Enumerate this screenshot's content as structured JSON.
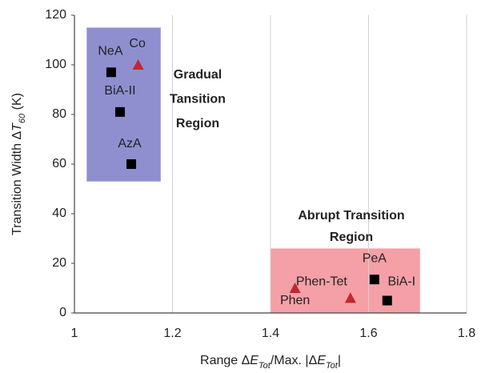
{
  "chart_data": {
    "type": "scatter",
    "x_label": [
      "Range Δ",
      "E",
      "Tot",
      "/Max. |Δ",
      "E",
      "Tot",
      "|"
    ],
    "y_label": [
      "Transition Width Δ",
      "T",
      "60",
      " (K)"
    ],
    "xlim": [
      1,
      1.8
    ],
    "xticks": [
      1,
      1.2,
      1.4,
      1.6,
      1.8
    ],
    "ylim": [
      0,
      120
    ],
    "yticks": [
      0,
      20,
      40,
      60,
      80,
      100,
      120
    ],
    "grid": "x",
    "regions": [
      {
        "text": [
          "Gradual",
          "Tansition",
          "Region"
        ],
        "x": [
          1.025,
          1.176
        ],
        "y": [
          53,
          115
        ],
        "color": "#8f8fd0"
      },
      {
        "text": [
          "Abrupt Transition",
          "Region"
        ],
        "x": [
          1.4,
          1.705
        ],
        "y": [
          0,
          26
        ],
        "color": "#f4a0a6"
      }
    ],
    "series": [
      {
        "marker": "square",
        "color": "#000000",
        "labels": [
          "NeA",
          "BiA-II",
          "AzA",
          "PeA",
          "BiA-I"
        ],
        "x": [
          1.075,
          1.093,
          1.116,
          1.612,
          1.638
        ],
        "values": [
          97,
          81,
          60,
          13.5,
          5
        ]
      },
      {
        "marker": "triangle",
        "color": "#c0282d",
        "labels": [
          "Co",
          "Phen",
          "Phen-Tet"
        ],
        "x": [
          1.13,
          1.45,
          1.563
        ],
        "values": [
          100,
          10,
          6
        ]
      }
    ]
  }
}
